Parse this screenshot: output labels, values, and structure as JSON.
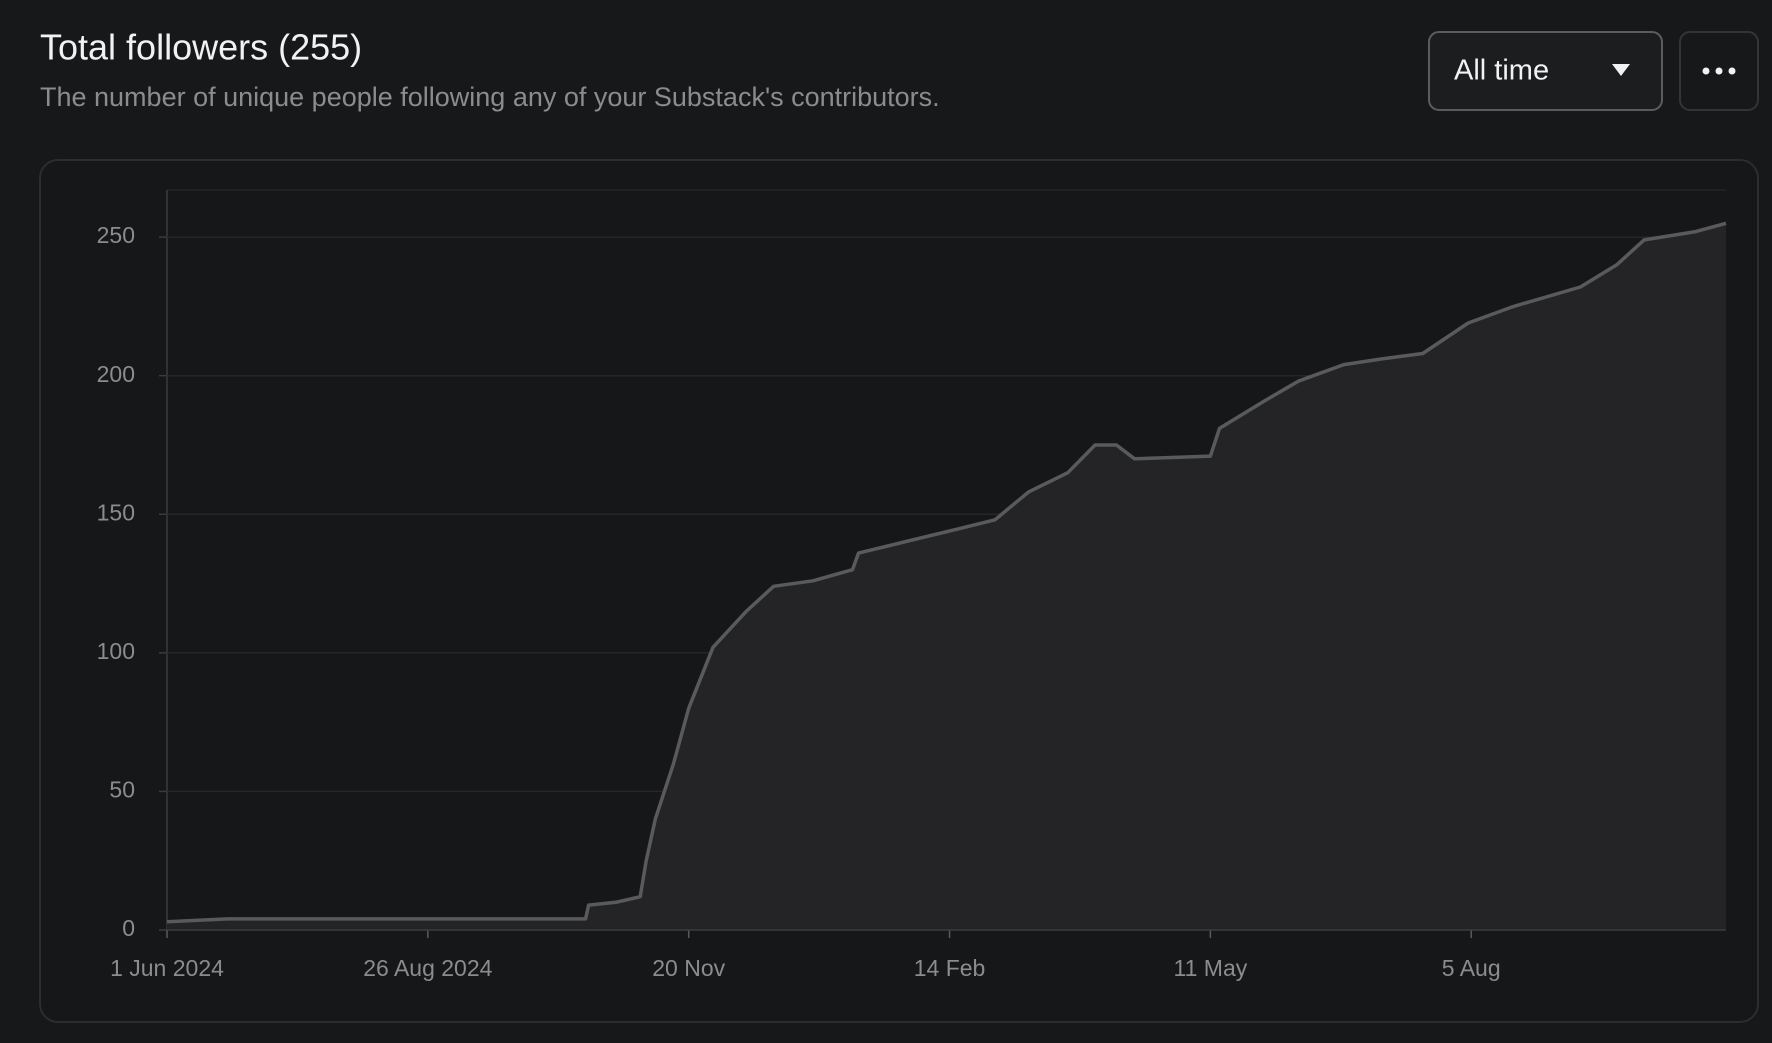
{
  "header": {
    "title": "Total followers (255)",
    "subtitle": "The number of unique people following any of your Substack's contributors.",
    "range_select": "All time"
  },
  "chart_data": {
    "type": "area",
    "x": [
      "2024-06-01",
      "2024-06-21",
      "2024-10-17",
      "2024-10-18",
      "2024-10-27",
      "2024-11-04",
      "2024-11-06",
      "2024-11-09",
      "2024-11-15",
      "2024-11-20",
      "2024-11-28",
      "2024-12-09",
      "2024-12-18",
      "2024-12-31",
      "2025-01-13",
      "2025-01-15",
      "2025-01-30",
      "2025-02-18",
      "2025-03-01",
      "2025-03-12",
      "2025-03-25",
      "2025-04-03",
      "2025-04-10",
      "2025-04-16",
      "2025-05-11",
      "2025-05-14",
      "2025-05-29",
      "2025-06-09",
      "2025-06-24",
      "2025-07-06",
      "2025-07-20",
      "2025-08-04",
      "2025-08-19",
      "2025-09-10",
      "2025-09-22",
      "2025-10-01",
      "2025-10-18",
      "2025-10-28"
    ],
    "values": [
      3,
      4,
      4,
      9,
      10,
      12,
      25,
      40,
      60,
      80,
      102,
      115,
      124,
      126,
      130,
      136,
      140,
      145,
      148,
      158,
      165,
      175,
      175,
      170,
      171,
      181,
      191,
      198,
      204,
      206,
      208,
      219,
      225,
      232,
      240,
      249,
      252,
      255
    ],
    "color": "#5a5a5c",
    "xlim": [
      "2024-06-01",
      "2025-10-28"
    ],
    "xticks": [
      {
        "value": "2024-06-01",
        "label": "1 Jun 2024"
      },
      {
        "value": "2024-08-26",
        "label": "26 Aug 2024"
      },
      {
        "value": "2024-11-20",
        "label": "20 Nov"
      },
      {
        "value": "2025-02-14",
        "label": "14 Feb"
      },
      {
        "value": "2025-05-11",
        "label": "11 May"
      },
      {
        "value": "2025-08-05",
        "label": "5 Aug"
      }
    ],
    "ylim": [
      0,
      267
    ],
    "yticks": [
      0,
      50,
      100,
      150,
      200,
      250
    ],
    "grid": true
  }
}
